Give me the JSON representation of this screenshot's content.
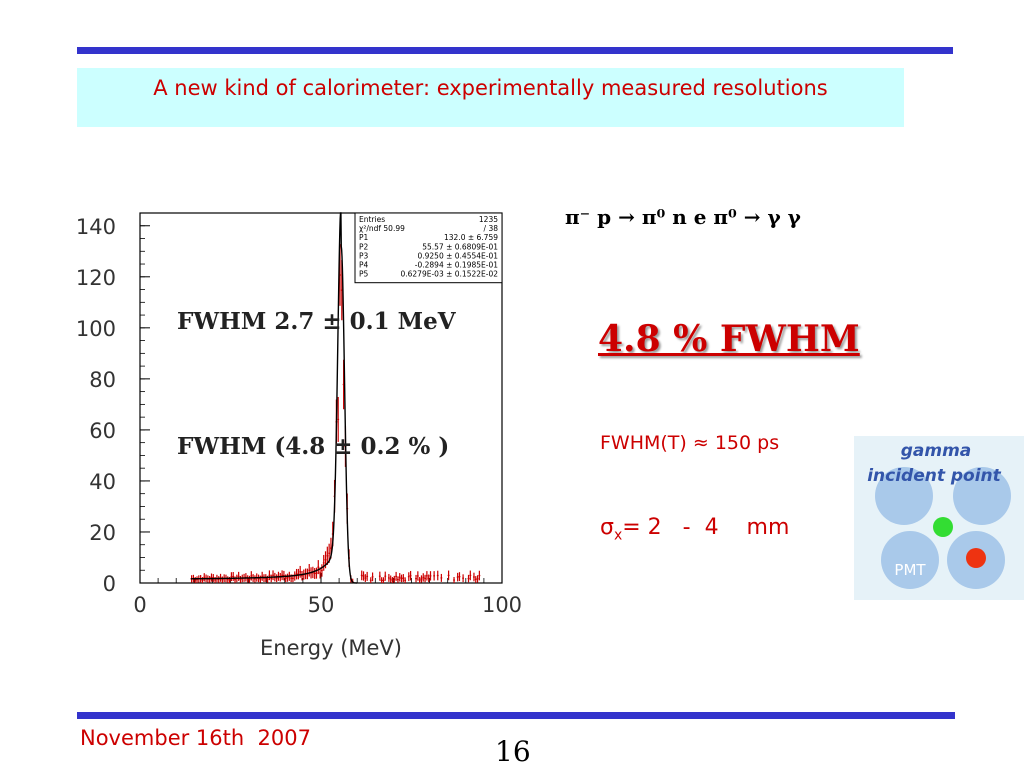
{
  "slide": {
    "title": "A new kind of calorimeter: experimentally measured resolutions",
    "reaction": "π⁻ p → π⁰ n  e  π⁰ → γ γ",
    "headline": "4.8 % FWHM",
    "fwhm_time": "FWHM(T) ≈ 150 ps",
    "sigma_x_symbol": "σ",
    "sigma_x_sub": "x",
    "sigma_x_value": "= 2   -  4    mm",
    "footer_date": "November 16th  2007",
    "page_number": "16"
  },
  "diagram": {
    "line1": "gamma",
    "line2": "incident point",
    "pmt_label": "PMT",
    "colors": {
      "background": "#e6f2f8",
      "pmt": "#a9c9ea",
      "text": "#3355aa",
      "green": "#33dd33",
      "red": "#ee3311"
    }
  },
  "colors": {
    "accent_red": "#cc0000",
    "rule_blue": "#3333cc",
    "title_bg": "#ccffff"
  },
  "chart_data": {
    "type": "histogram",
    "xlabel": "Energy (MeV)",
    "ylabel": "",
    "xlim": [
      0,
      100
    ],
    "ylim": [
      0,
      145
    ],
    "x_ticks": [
      0,
      50,
      100
    ],
    "y_ticks": [
      0,
      20,
      40,
      60,
      80,
      100,
      120,
      140
    ],
    "annotations": [
      "FWHM 2.7 ± 0.1 MeV",
      "FWHM (4.8 ± 0.2 % )"
    ],
    "stats_box": [
      [
        "Entries",
        "1235"
      ],
      [
        "χ²/ndf 50.99",
        "/  38"
      ],
      [
        "P1",
        "132.0 ±   6.759"
      ],
      [
        "P2",
        "55.57 ±  0.6809E-01"
      ],
      [
        "P3",
        "0.9250 ±  0.4554E-01"
      ],
      [
        "P4",
        "-0.2894 ±  0.1985E-01"
      ],
      [
        "P5",
        "0.6279E-03 ±  0.1522E-02"
      ]
    ],
    "fit": {
      "amplitude": 132.0,
      "peak": 55.57,
      "sigma": 0.925,
      "tail_alpha": -0.2894
    },
    "histogram_color": "#cc0000",
    "fit_color": "#000000"
  }
}
